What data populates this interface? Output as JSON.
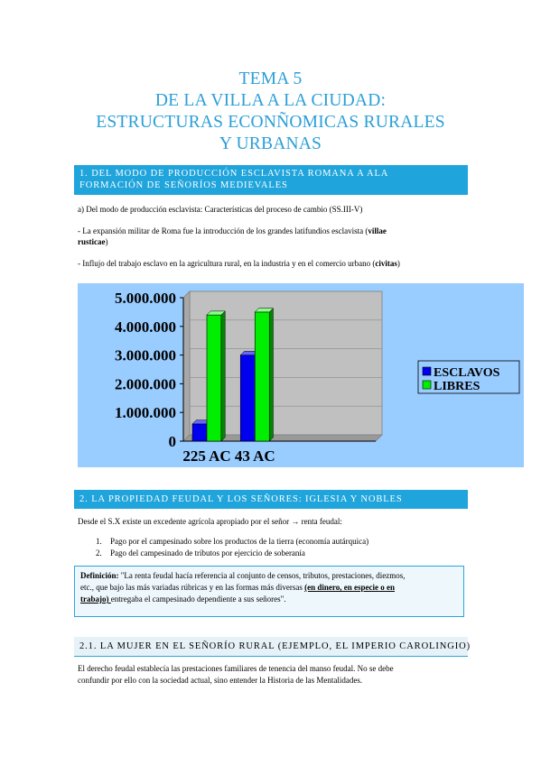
{
  "title": {
    "line1": "TEMA 5",
    "line2": "DE LA VILLA A LA CIUDAD:",
    "line3": "ESTRUCTURAS ECONÑOMICAS RURALES",
    "line4": "Y URBANAS"
  },
  "section1": {
    "heading_line1": "1. DEL MODO DE PRODUCCIÓN ESCLAVISTA ROMANA A ALA",
    "heading_line2": "FORMACIÓN DE SEÑORÍOS MEDIEVALES",
    "sub_a": "a) Del modo de producción esclavista: Características del proceso de cambio (SS.III-V)",
    "para1_start": "- La expansión militar de Roma fue la introducción de los grandes latifundios esclavista (",
    "para1_bold1": "villae",
    "para1_bold2": "rusticae",
    "para1_end": ")",
    "para2_start": "- Influjo del trabajo esclavo en la agricultura rural, en la industria y en el comercio urbano (",
    "para2_bold": "civitas",
    "para2_end": ")"
  },
  "chart_data": {
    "type": "bar",
    "categories": [
      "225 AC",
      "43 AC"
    ],
    "series": [
      {
        "name": "ESCLAVOS",
        "values": [
          600000,
          3000000
        ],
        "color": "#0000ee"
      },
      {
        "name": "LIBRES",
        "values": [
          4400000,
          4500000
        ],
        "color": "#00ee00"
      }
    ],
    "ylim": [
      0,
      5000000
    ],
    "yticks": [
      "0",
      "1.000.000",
      "2.000.000",
      "3.000.000",
      "4.000.000",
      "5.000.000"
    ],
    "legend": "right",
    "background": "#99ccff"
  },
  "section2": {
    "heading": "2. LA PROPIEDAD FEUDAL Y LOS SEÑORES: IGLESIA Y NOBLES",
    "intro": "Desde el S.X existe un excedente agrícola apropiado por el señor → renta feudal:",
    "item1_num": "1.",
    "item1": "Pago por el campesinado sobre los productos de la tierra (economía autárquica)",
    "item2_num": "2.",
    "item2": "Pago del campesinado de tributos por ejercicio de soberanía",
    "def_label": "Definición:",
    "def_text1": " \"La renta feudal hacía referencia al conjunto de censos, tributos, prestaciones, diezmos,",
    "def_text2": "etc., que bajo las más variadas rúbricas y en las formas más diversas ",
    "def_bold_u1": "(en dinero, en especie o en",
    "def_bold_u2": "trabajo) ",
    "def_text3": "entregaba el campesinado dependiente a sus señores\"."
  },
  "section21": {
    "heading": "2.1. LA MUJER EN EL SEÑORÍO RURAL (EJEMPLO, EL IMPERIO CAROLINGIO)",
    "line1": "El derecho feudal establecía las prestaciones familiares de tenencia del manso feudal. No se debe",
    "line2": "confundir por ello con la sociedad actual, sino entender la Historia de las Mentalidades."
  }
}
